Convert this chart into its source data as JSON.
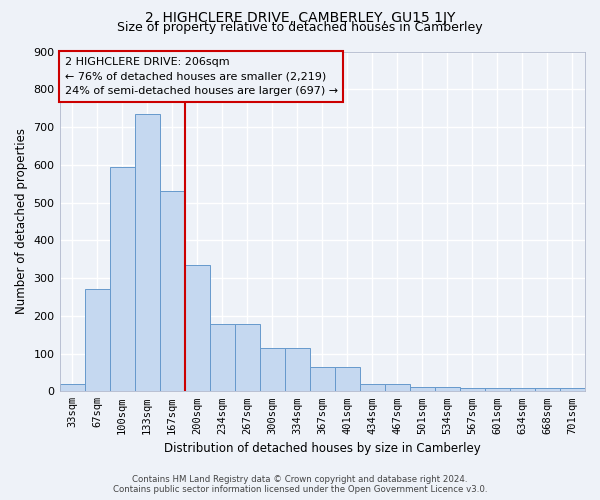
{
  "title": "2, HIGHCLERE DRIVE, CAMBERLEY, GU15 1JY",
  "subtitle": "Size of property relative to detached houses in Camberley",
  "xlabel": "Distribution of detached houses by size in Camberley",
  "ylabel": "Number of detached properties",
  "categories": [
    "33sqm",
    "67sqm",
    "100sqm",
    "133sqm",
    "167sqm",
    "200sqm",
    "234sqm",
    "267sqm",
    "300sqm",
    "334sqm",
    "367sqm",
    "401sqm",
    "434sqm",
    "467sqm",
    "501sqm",
    "534sqm",
    "567sqm",
    "601sqm",
    "634sqm",
    "668sqm",
    "701sqm"
  ],
  "bar_heights": [
    20,
    270,
    595,
    735,
    530,
    335,
    178,
    178,
    115,
    115,
    65,
    65,
    20,
    20,
    12,
    12,
    8,
    8,
    10,
    8,
    8
  ],
  "bar_color": "#c5d8f0",
  "bar_edgecolor": "#6699cc",
  "vline_x": 4.5,
  "vline_color": "#cc0000",
  "annotation_text": "2 HIGHCLERE DRIVE: 206sqm\n← 76% of detached houses are smaller (2,219)\n24% of semi-detached houses are larger (697) →",
  "annotation_box_color": "#cc0000",
  "ylim": [
    0,
    900
  ],
  "yticks": [
    0,
    100,
    200,
    300,
    400,
    500,
    600,
    700,
    800,
    900
  ],
  "footer_line1": "Contains HM Land Registry data © Crown copyright and database right 2024.",
  "footer_line2": "Contains public sector information licensed under the Open Government Licence v3.0.",
  "bg_color": "#eef2f8",
  "grid_color": "#ffffff",
  "title_fontsize": 10,
  "subtitle_fontsize": 9,
  "tick_fontsize": 7.5
}
